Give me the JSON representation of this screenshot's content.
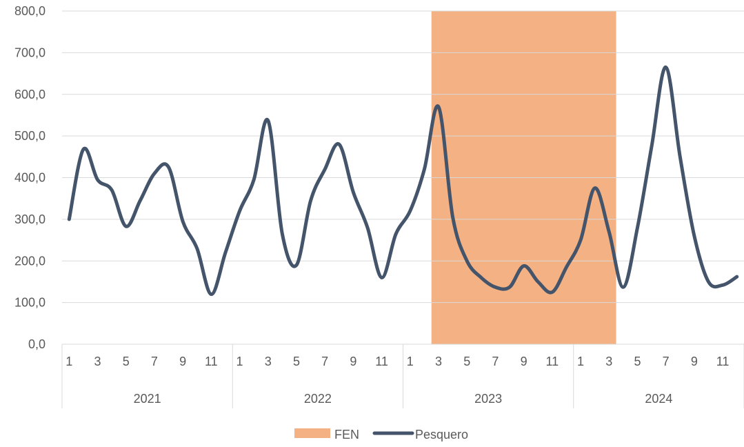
{
  "chart_data": {
    "type": "line",
    "title": "",
    "xlabel": "",
    "ylabel": "",
    "ylim": [
      0,
      800
    ],
    "y_ticks": [
      "0,0",
      "100,0",
      "200,0",
      "300,0",
      "400,0",
      "500,0",
      "600,0",
      "700,0",
      "800,0"
    ],
    "grid": true,
    "legend_position": "bottom",
    "month_tick_labels": [
      "1",
      "3",
      "5",
      "7",
      "9",
      "11"
    ],
    "years": [
      "2021",
      "2022",
      "2023",
      "2024"
    ],
    "series": [
      {
        "name": "Pesquero",
        "kind": "line",
        "color": "#44546a",
        "values": [
          300,
          468,
          395,
          370,
          283,
          345,
          410,
          425,
          295,
          230,
          120,
          220,
          320,
          395,
          537,
          265,
          190,
          345,
          420,
          480,
          365,
          280,
          160,
          265,
          320,
          420,
          570,
          305,
          200,
          160,
          137,
          137,
          188,
          150,
          125,
          185,
          250,
          375,
          270,
          137,
          280,
          475,
          665,
          450,
          260,
          150,
          142,
          162
        ]
      },
      {
        "name": "FEN",
        "kind": "shaded-band",
        "color": "#f4b183",
        "start": {
          "year": "2023",
          "month": 3
        },
        "end": {
          "year": "2024",
          "month": 3
        }
      }
    ]
  },
  "legend": {
    "items": [
      {
        "label": "FEN",
        "color": "#f4b183",
        "symbol": "bar"
      },
      {
        "label": "Pesquero",
        "color": "#44546a",
        "symbol": "line"
      }
    ]
  }
}
